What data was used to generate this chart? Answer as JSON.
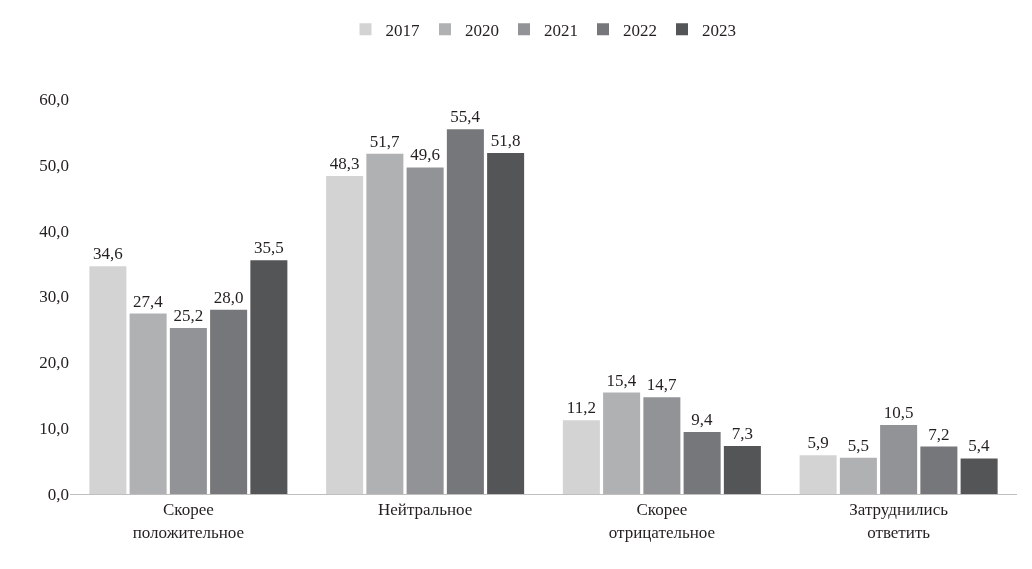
{
  "chart_data": {
    "type": "bar",
    "categories": [
      "Скорее положительное",
      "Нейтральное",
      "Скорее отрицательное",
      "Затруднились ответить"
    ],
    "series": [
      {
        "name": "2017",
        "color": "#d3d3d4",
        "values": [
          34.6,
          48.3,
          11.2,
          5.9
        ],
        "value_labels": [
          "34,6",
          "48,3",
          "11,2",
          "5,9"
        ]
      },
      {
        "name": "2020",
        "color": "#b0b1b3",
        "values": [
          27.4,
          51.7,
          15.4,
          5.5
        ],
        "value_labels": [
          "27,4",
          "51,7",
          "15,4",
          "5,5"
        ]
      },
      {
        "name": "2021",
        "color": "#929396",
        "values": [
          25.2,
          49.6,
          14.7,
          10.5
        ],
        "value_labels": [
          "25,2",
          "49,6",
          "14,7",
          "10,5"
        ]
      },
      {
        "name": "2022",
        "color": "#76777a",
        "values": [
          28.0,
          55.4,
          9.4,
          7.2
        ],
        "value_labels": [
          "28,0",
          "55,4",
          "9,4",
          "7,2"
        ]
      },
      {
        "name": "2023",
        "color": "#545557",
        "values": [
          35.5,
          51.8,
          7.3,
          5.4
        ],
        "value_labels": [
          "35,5",
          "51,8",
          "7,3",
          "5,4"
        ]
      }
    ],
    "ylim": [
      0,
      60
    ],
    "yticks": [
      {
        "value": 0,
        "label": "0,0"
      },
      {
        "value": 10,
        "label": "10,0"
      },
      {
        "value": 20,
        "label": "20,0"
      },
      {
        "value": 30,
        "label": "30,0"
      },
      {
        "value": 40,
        "label": "40,0"
      },
      {
        "value": 50,
        "label": "50,0"
      },
      {
        "value": 60,
        "label": "60,0"
      }
    ],
    "legend": "top"
  }
}
